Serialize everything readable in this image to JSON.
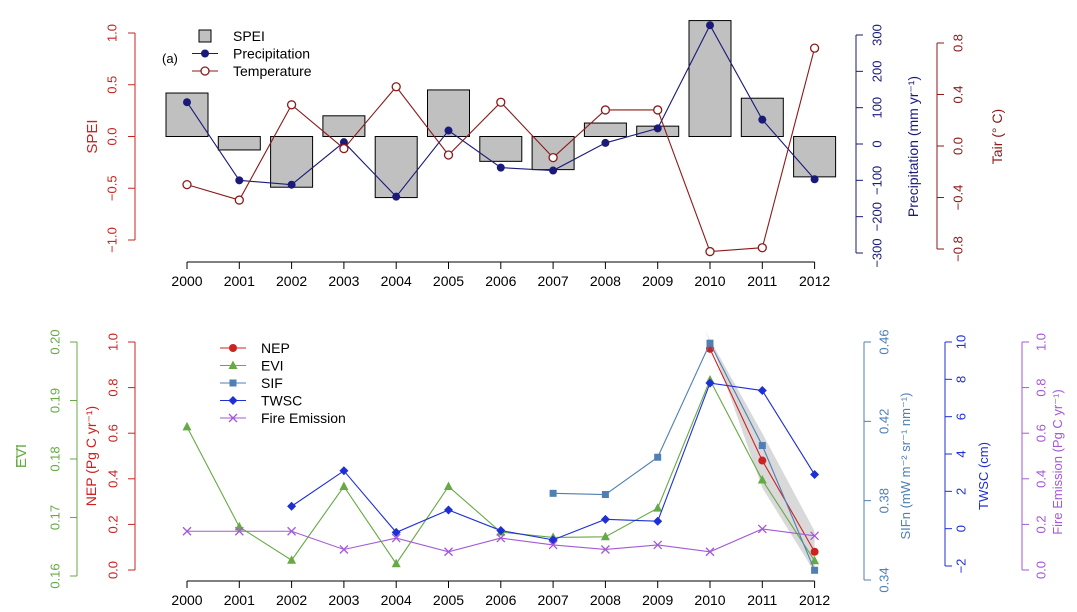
{
  "years": [
    "2000",
    "2001",
    "2002",
    "2003",
    "2004",
    "2005",
    "2006",
    "2007",
    "2008",
    "2009",
    "2010",
    "2011",
    "2012"
  ],
  "colors": {
    "spei": "#cc2222",
    "precip": "#1a1a7a",
    "temp": "#8b1a1a",
    "nep": "#cc2222",
    "evi": "#66aa44",
    "sif": "#4f7fb3",
    "twsc": "#1f2fd6",
    "fire": "#a45ad6",
    "bar_fill": "#c0c0c0",
    "band": "#d9d9d9"
  },
  "chart_data": [
    {
      "id": "top",
      "type": "bar",
      "panel_label": "(a)",
      "categories": [
        "2000",
        "2001",
        "2002",
        "2003",
        "2004",
        "2005",
        "2006",
        "2007",
        "2008",
        "2009",
        "2010",
        "2011",
        "2012"
      ],
      "legend": [
        "SPEI",
        "Precipitation",
        "Temperature"
      ],
      "axes": {
        "left": {
          "label": "SPEI",
          "ylim": [
            -1.0,
            1.0
          ],
          "ticks": [
            "-1.0",
            "-0.5",
            "0.0",
            "0.5",
            "1.0"
          ]
        },
        "right1": {
          "label": "Precipitation (mm yr⁻¹)",
          "ylim": [
            -300,
            300
          ],
          "ticks": [
            "-300",
            "-200",
            "-100",
            "0",
            "100",
            "200",
            "300"
          ]
        },
        "right2": {
          "label": "Tair (° C)",
          "ylim": [
            -0.8,
            0.8
          ],
          "ticks": [
            "-0.8",
            "-0.4",
            "0.0",
            "0.4",
            "0.8"
          ]
        }
      },
      "series": [
        {
          "name": "SPEI",
          "kind": "bar",
          "axis": "left",
          "values": [
            0.42,
            -0.13,
            -0.49,
            0.2,
            -0.59,
            0.45,
            -0.24,
            -0.32,
            0.13,
            0.1,
            1.12,
            0.37,
            -0.39
          ]
        },
        {
          "name": "Precipitation",
          "kind": "line",
          "axis": "right1",
          "values": [
            115,
            -100,
            -112,
            5,
            -145,
            37,
            -65,
            -73,
            3,
            43,
            327,
            67,
            -97
          ]
        },
        {
          "name": "Temperature",
          "kind": "line",
          "axis": "right2",
          "values": [
            -0.3,
            -0.42,
            0.32,
            -0.02,
            0.46,
            -0.07,
            0.34,
            -0.09,
            0.28,
            0.28,
            -0.82,
            -0.79,
            0.76
          ]
        }
      ]
    },
    {
      "id": "bottom",
      "type": "line",
      "categories": [
        "2000",
        "2001",
        "2002",
        "2003",
        "2004",
        "2005",
        "2006",
        "2007",
        "2008",
        "2009",
        "2010",
        "2011",
        "2012"
      ],
      "legend": [
        "NEP",
        "EVI",
        "SIF",
        "TWSC",
        "Fire Emission"
      ],
      "axes": {
        "evi": {
          "label": "EVI",
          "ylim": [
            0.16,
            0.2
          ],
          "ticks": [
            "0.16",
            "0.17",
            "0.18",
            "0.19",
            "0.20"
          ]
        },
        "nep": {
          "label": "NEP (Pg C yr⁻¹)",
          "ylim": [
            0.0,
            1.0
          ],
          "ticks": [
            "0.0",
            "0.2",
            "0.4",
            "0.6",
            "0.8",
            "1.0"
          ]
        },
        "sif": {
          "label": "SIFn (mW m⁻² sr⁻¹ nm⁻¹)",
          "ylim": [
            0.34,
            0.46
          ],
          "ticks": [
            "0.34",
            "0.38",
            "0.42",
            "0.46"
          ]
        },
        "twsc": {
          "label": "TWSC (cm)",
          "ylim": [
            -2,
            10
          ],
          "ticks": [
            "-2",
            "0",
            "2",
            "4",
            "6",
            "8",
            "10"
          ]
        },
        "fire": {
          "label": "Fire Emission (Pg C yr⁻¹)",
          "ylim": [
            0.0,
            1.0
          ],
          "ticks": [
            "0.0",
            "0.2",
            "0.4",
            "0.6",
            "0.8",
            "1.0"
          ]
        }
      },
      "series": [
        {
          "name": "NEP",
          "axis": "nep",
          "marker": "circle",
          "values": [
            null,
            null,
            null,
            null,
            null,
            null,
            null,
            null,
            null,
            null,
            0.97,
            0.48,
            0.08
          ]
        },
        {
          "name": "EVI",
          "axis": "evi",
          "marker": "triangle",
          "values": [
            0.1855,
            0.1684,
            0.1627,
            0.1753,
            0.1621,
            0.1753,
            0.1675,
            0.1666,
            0.1667,
            0.1716,
            0.1935,
            0.1764,
            0.1626
          ]
        },
        {
          "name": "SIF",
          "axis": "sif",
          "marker": "square",
          "values": [
            null,
            null,
            null,
            null,
            null,
            null,
            null,
            0.3837,
            0.3831,
            0.4019,
            0.4594,
            0.4078,
            0.3449
          ]
        },
        {
          "name": "TWSC",
          "axis": "twsc",
          "marker": "diamond",
          "values": [
            null,
            null,
            1.2,
            3.1,
            -0.2,
            1.0,
            -0.1,
            -0.6,
            0.5,
            0.4,
            7.8,
            7.4,
            2.9
          ]
        },
        {
          "name": "Fire Emission",
          "axis": "fire",
          "marker": "x",
          "values": [
            0.17,
            0.17,
            0.17,
            0.09,
            0.14,
            0.08,
            0.14,
            0.11,
            0.09,
            0.11,
            0.08,
            0.18,
            0.15
          ]
        }
      ],
      "band": {
        "axis": "nep",
        "x": [
          "2010",
          "2011",
          "2012"
        ],
        "upper": [
          1.05,
          0.6,
          0.17
        ],
        "lower": [
          0.95,
          0.36,
          -0.01
        ]
      }
    }
  ]
}
